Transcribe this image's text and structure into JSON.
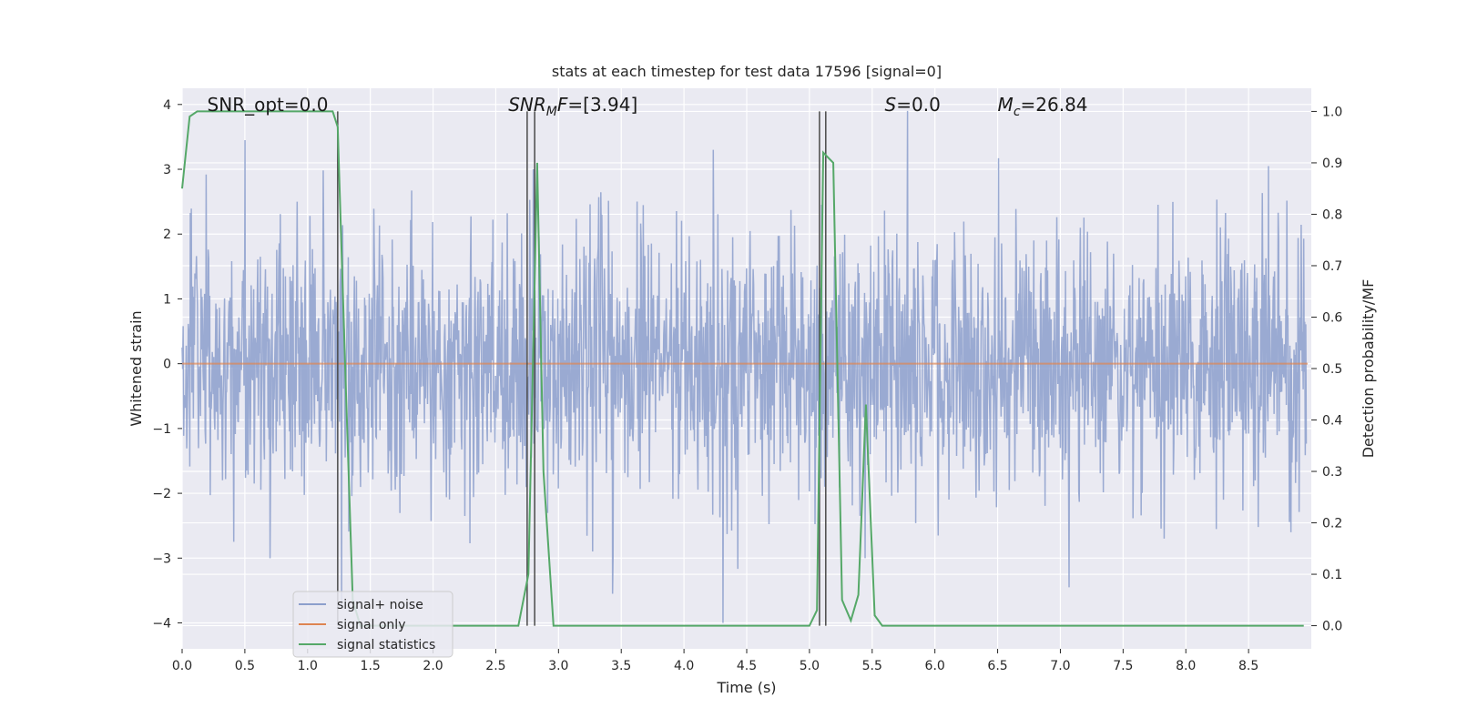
{
  "chart_data": {
    "type": "line",
    "title": "stats at each timestep for test data 17596 [signal=0]",
    "xlabel": "Time (s)",
    "ylabel_left": "Whitened strain",
    "ylabel_right": "Detection probability/MF",
    "xlim": [
      0.0,
      9.0
    ],
    "ylim_left": [
      -4.4,
      4.25
    ],
    "ylim_right": [
      -0.045,
      1.045
    ],
    "x_ticks": [
      0.0,
      0.5,
      1.0,
      1.5,
      2.0,
      2.5,
      3.0,
      3.5,
      4.0,
      4.5,
      5.0,
      5.5,
      6.0,
      6.5,
      7.0,
      7.5,
      8.0,
      8.5
    ],
    "x_tick_labels": [
      "0.0",
      "0.5",
      "1.0",
      "1.5",
      "2.0",
      "2.5",
      "3.0",
      "3.5",
      "4.0",
      "4.5",
      "5.0",
      "5.5",
      "6.0",
      "6.5",
      "7.0",
      "7.5",
      "8.0",
      "8.5"
    ],
    "y_left_ticks": [
      4,
      3,
      2,
      1,
      0,
      -1,
      -2,
      -3,
      -4
    ],
    "y_left_tick_labels": [
      "4",
      "3",
      "2",
      "1",
      "0",
      "−1",
      "−2",
      "−3",
      "−4"
    ],
    "y_right_ticks": [
      1.0,
      0.9,
      0.8,
      0.7,
      0.6,
      0.5,
      0.4,
      0.3,
      0.2,
      0.1,
      0.0
    ],
    "y_right_tick_labels": [
      "1.0",
      "0.9",
      "0.8",
      "0.7",
      "0.6",
      "0.5",
      "0.4",
      "0.3",
      "0.2",
      "0.1",
      "0.0"
    ],
    "grid": true,
    "legend_position": "lower-left",
    "series": [
      {
        "name": "signal+ noise",
        "axis": "left",
        "color": "#8c9fcc",
        "noise_sigma": 1.0,
        "peak_values": [
          {
            "x": 0.5,
            "y": 3.45
          },
          {
            "x": 1.27,
            "y": -3.75
          },
          {
            "x": 2.8,
            "y": 3.0
          },
          {
            "x": 3.43,
            "y": -3.55
          },
          {
            "x": 4.31,
            "y": -4.0
          },
          {
            "x": 5.78,
            "y": 3.9
          },
          {
            "x": 7.07,
            "y": -3.45
          },
          {
            "x": 8.66,
            "y": 3.05
          }
        ]
      },
      {
        "name": "signal only",
        "axis": "left",
        "color": "#dd8452",
        "x": [
          0.0,
          9.0
        ],
        "y": [
          0.0,
          0.0
        ]
      },
      {
        "name": "signal statistics",
        "axis": "right",
        "color": "#55a868",
        "x": [
          0.0,
          0.06,
          0.12,
          0.3,
          0.5,
          0.8,
          1.0,
          1.2,
          1.24,
          1.3,
          1.36,
          1.42,
          2.0,
          2.5,
          2.68,
          2.76,
          2.83,
          2.88,
          2.96,
          3.5,
          4.0,
          4.5,
          5.0,
          5.06,
          5.11,
          5.19,
          5.26,
          5.33,
          5.39,
          5.45,
          5.52,
          5.58,
          6.0,
          6.5,
          7.0,
          7.2,
          7.3,
          8.0,
          8.94
        ],
        "y": [
          0.85,
          0.99,
          1.0,
          1.0,
          1.0,
          1.0,
          1.0,
          1.0,
          0.97,
          0.5,
          0.05,
          0.0,
          0.0,
          0.0,
          0.0,
          0.1,
          0.9,
          0.3,
          0.0,
          0.0,
          0.0,
          0.0,
          0.0,
          0.03,
          0.92,
          0.9,
          0.05,
          0.01,
          0.06,
          0.43,
          0.02,
          0.0,
          0.0,
          0.0,
          0.0,
          0.0,
          0.0,
          0.0,
          0.0
        ]
      }
    ],
    "vertical_markers": [
      1.24,
      2.75,
      2.81,
      5.08,
      5.13
    ],
    "vertical_marker_range_right": [
      0.0,
      1.0
    ],
    "annotations": [
      {
        "text": "SNR_opt=0.0",
        "x": 0.2,
        "y": 4.0
      },
      {
        "pre": "SNR",
        "sub": "M",
        "post": "F=[3.94]",
        "x": 2.6,
        "y": 4.0
      },
      {
        "pre": "S",
        "sub": "",
        "post": "=0.0",
        "x": 5.6,
        "y": 4.0
      },
      {
        "pre": "M",
        "sub": "c",
        "post": "=26.84",
        "x": 6.5,
        "y": 4.0
      }
    ]
  }
}
